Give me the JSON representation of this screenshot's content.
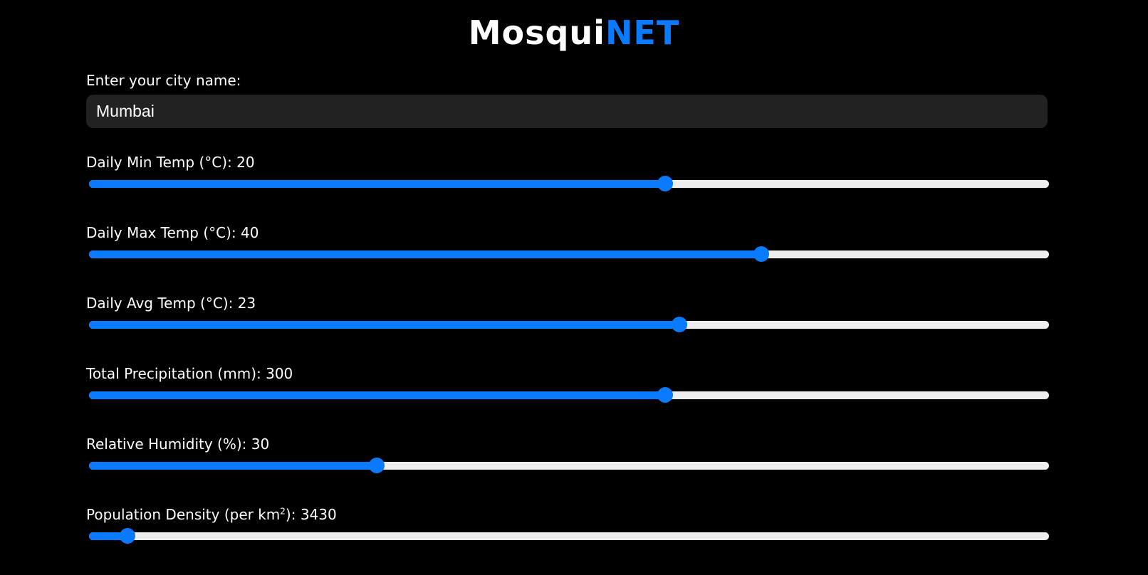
{
  "header": {
    "title_part1": "Mosqui",
    "title_part2": "NET",
    "accent_color": "#0a7bff"
  },
  "city": {
    "label": "Enter your city name:",
    "value": "Mumbai"
  },
  "sliders": [
    {
      "label": "Daily Min Temp (°C): ",
      "value": "20",
      "fraction": 0.6
    },
    {
      "label": "Daily Max Temp (°C): ",
      "value": "40",
      "fraction": 0.7
    },
    {
      "label": "Daily Avg Temp (°C): ",
      "value": "23",
      "fraction": 0.615
    },
    {
      "label": "Total Precipitation (mm): ",
      "value": "300",
      "fraction": 0.6
    },
    {
      "label": "Relative Humidity (%): ",
      "value": "30",
      "fraction": 0.3
    },
    {
      "label_pre": "Population Density (per km",
      "label_sup": "2",
      "label_post": "): ",
      "value": "3430",
      "fraction": 0.04
    }
  ]
}
